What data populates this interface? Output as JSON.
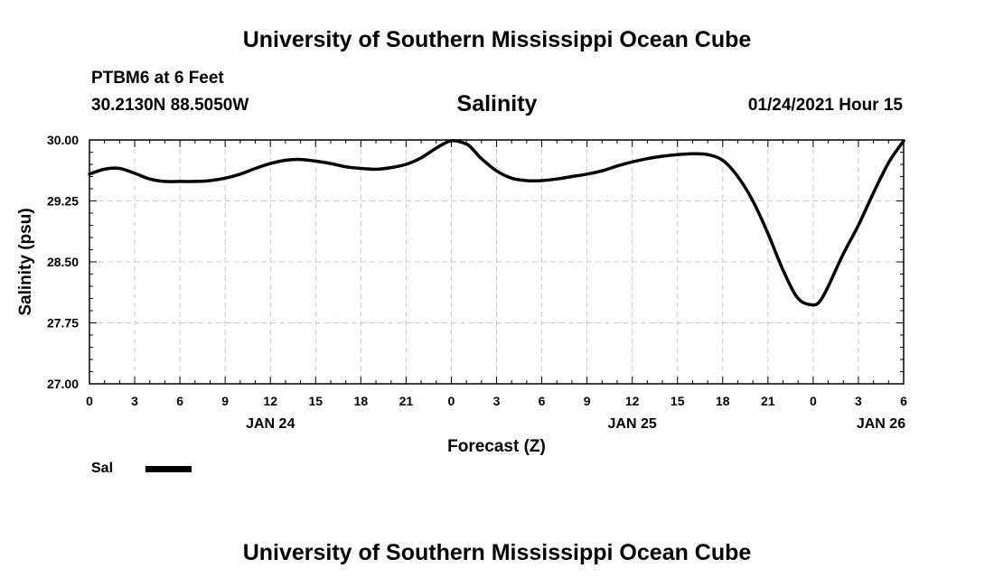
{
  "header": {
    "top_title": "University of Southern Mississippi Ocean Cube",
    "station": "PTBM6 at 6 Feet",
    "coordinates": "30.2130N 88.5050W",
    "timestamp": "01/24/2021 Hour 15",
    "bottom_title": "University of Southern Mississippi Ocean Cube"
  },
  "legend": {
    "label": "Sal",
    "color": "#000000"
  },
  "chart_data": {
    "type": "line",
    "title": "Salinity",
    "xlabel": "Forecast (Z)",
    "ylabel": "Salinity (psu)",
    "xlim": [
      0,
      54
    ],
    "ylim": [
      27.0,
      30.0
    ],
    "grid": true,
    "x_ticks": [
      0,
      3,
      6,
      9,
      12,
      15,
      18,
      21,
      24,
      27,
      30,
      33,
      36,
      39,
      42,
      45,
      48,
      51,
      54
    ],
    "x_tick_labels": [
      "0",
      "3",
      "6",
      "9",
      "12",
      "15",
      "18",
      "21",
      "0",
      "3",
      "6",
      "9",
      "12",
      "15",
      "18",
      "21",
      "0",
      "3",
      "6"
    ],
    "y_ticks": [
      27.0,
      27.75,
      28.5,
      29.25,
      30.0
    ],
    "y_tick_labels": [
      "27.00",
      "27.75",
      "28.50",
      "29.25",
      "30.00"
    ],
    "day_labels": [
      {
        "x": 12,
        "label": "JAN 24"
      },
      {
        "x": 36,
        "label": "JAN 25"
      },
      {
        "x": 52.5,
        "label": "JAN 26"
      }
    ],
    "series": [
      {
        "name": "Sal",
        "color": "#000000",
        "x": [
          0,
          1,
          2,
          3,
          4,
          5,
          6,
          7,
          8,
          9,
          10,
          11,
          12,
          13,
          14,
          15,
          16,
          17,
          18,
          19,
          20,
          21,
          22,
          23,
          24,
          25,
          25.5,
          26,
          27,
          28,
          29,
          30,
          31,
          32,
          33,
          34,
          35,
          36,
          37,
          38,
          39,
          40,
          41,
          42,
          43,
          44,
          45,
          46,
          47,
          48,
          48.5,
          49,
          50,
          51,
          52,
          53,
          54
        ],
        "y": [
          29.58,
          29.64,
          29.65,
          29.59,
          29.52,
          29.49,
          29.49,
          29.49,
          29.5,
          29.53,
          29.58,
          29.65,
          29.71,
          29.75,
          29.76,
          29.74,
          29.71,
          29.67,
          29.65,
          29.64,
          29.66,
          29.7,
          29.78,
          29.9,
          29.99,
          29.95,
          29.87,
          29.77,
          29.62,
          29.53,
          29.5,
          29.5,
          29.52,
          29.55,
          29.58,
          29.62,
          29.68,
          29.73,
          29.77,
          29.8,
          29.82,
          29.83,
          29.82,
          29.75,
          29.55,
          29.25,
          28.85,
          28.4,
          28.05,
          27.97,
          28.03,
          28.2,
          28.6,
          28.95,
          29.35,
          29.72,
          29.99
        ]
      }
    ]
  }
}
